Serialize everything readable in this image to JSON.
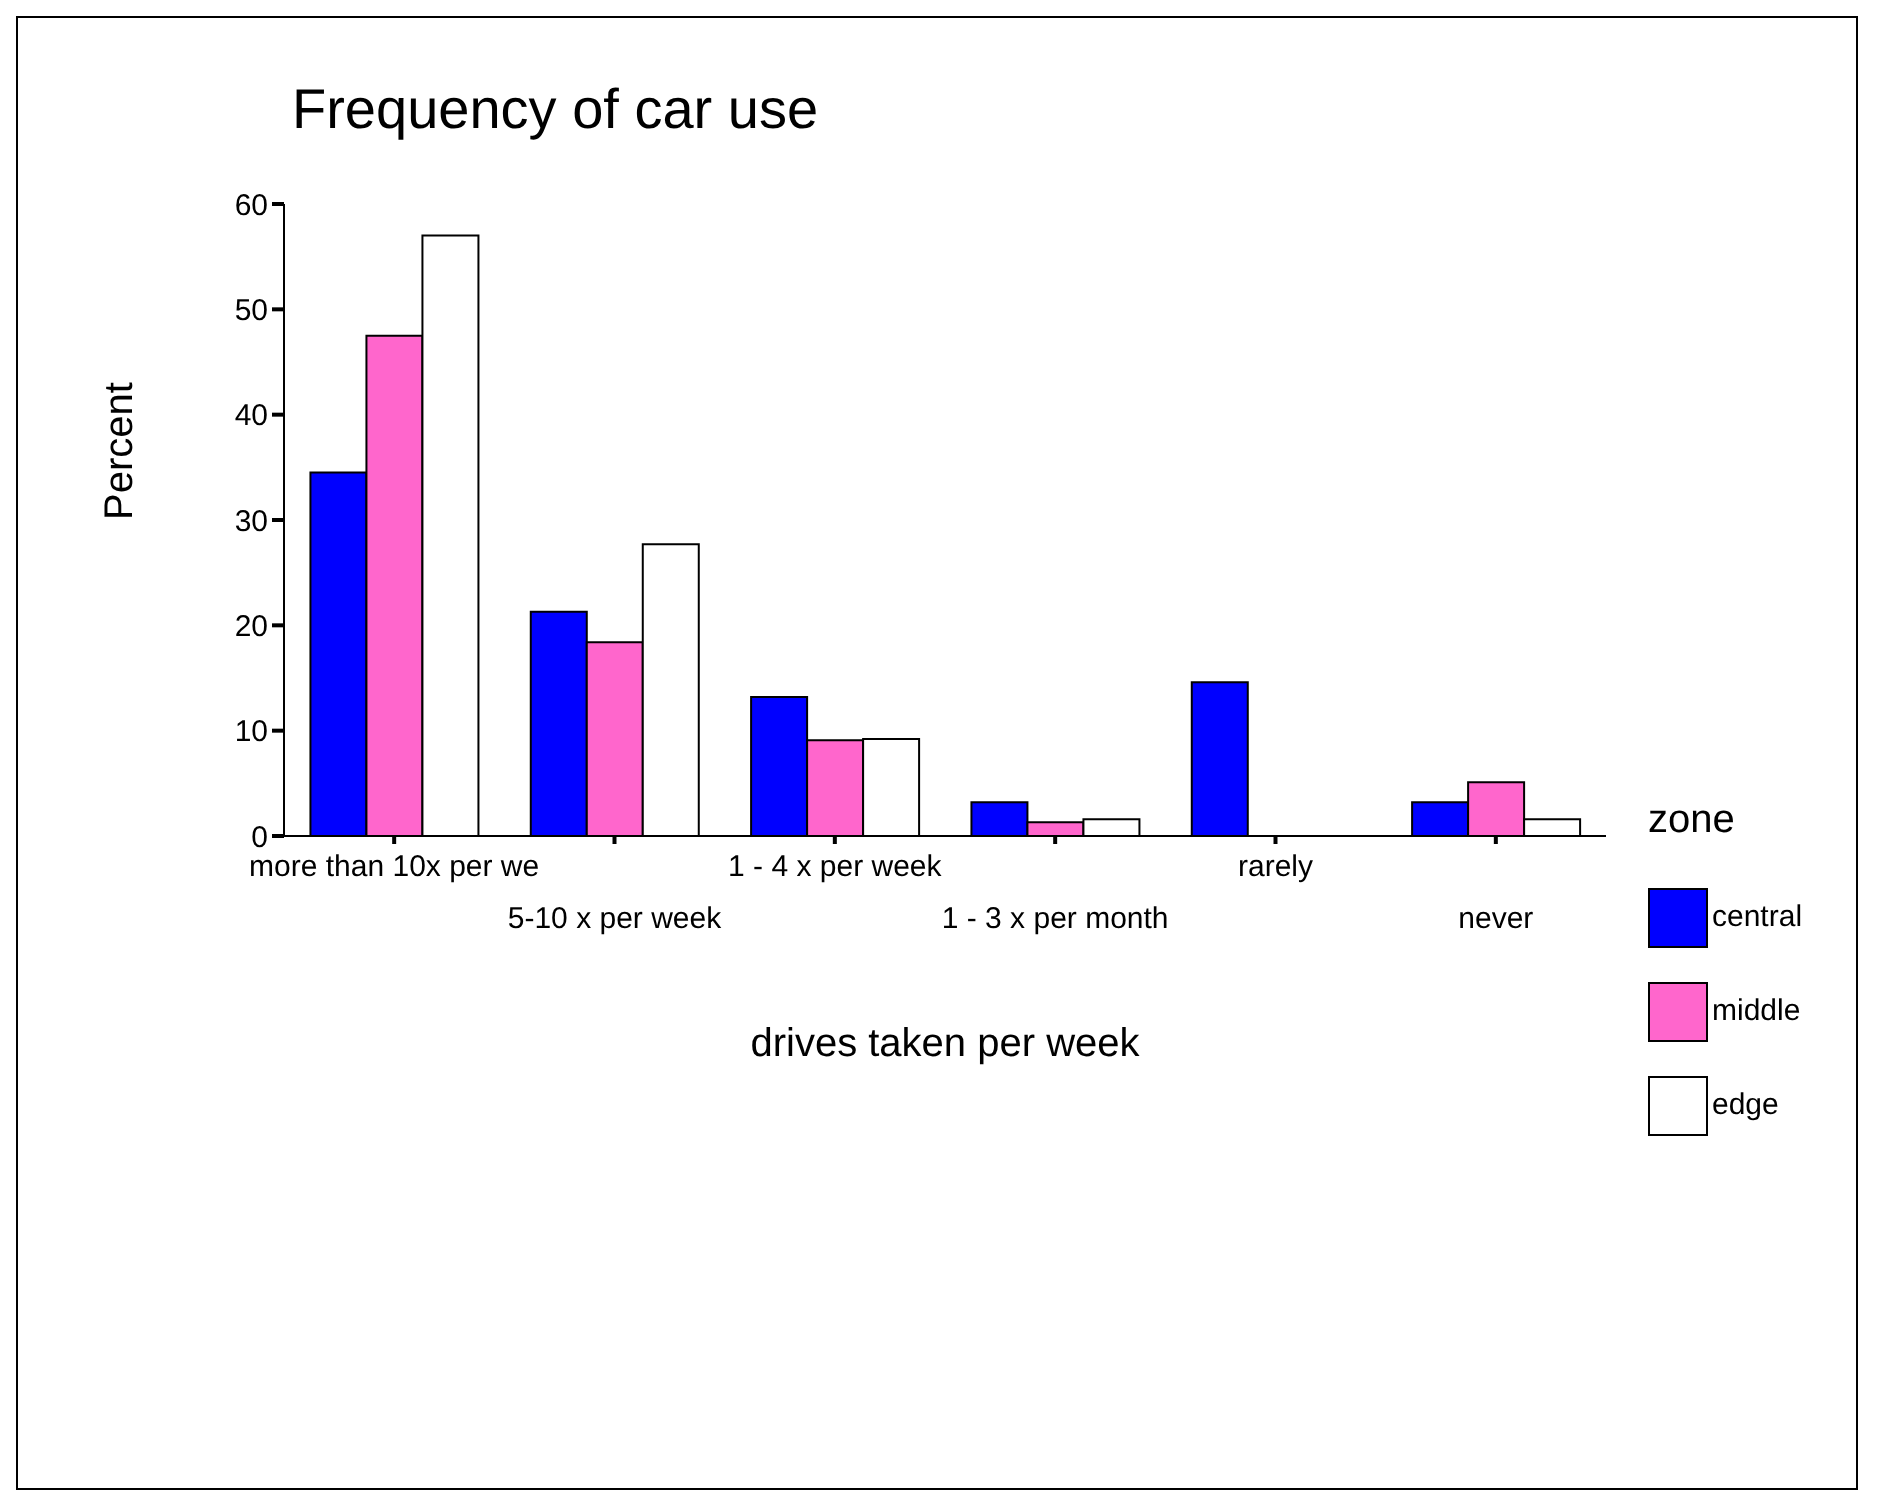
{
  "chart_data": {
    "type": "bar",
    "title": "Frequency of car use",
    "xlabel": "drives taken per week",
    "ylabel": "Percent",
    "legend_title": "zone",
    "legend": "right",
    "categories": [
      "more than 10x per we",
      "5-10 x per week",
      "1 - 4 x per week",
      "1 - 3 x per month",
      "rarely",
      "never"
    ],
    "series": [
      {
        "name": "central",
        "color": "#0000ff",
        "values": [
          34.5,
          21.3,
          13.2,
          3.2,
          14.6,
          3.2
        ]
      },
      {
        "name": "middle",
        "color": "#ff66cc",
        "values": [
          47.5,
          18.4,
          9.1,
          1.3,
          0,
          5.1
        ]
      },
      {
        "name": "edge",
        "color": "#ffffff",
        "values": [
          57,
          27.7,
          9.2,
          1.6,
          0,
          1.6
        ]
      }
    ],
    "ylim": [
      0,
      60
    ],
    "yticks": [
      0,
      10,
      20,
      30,
      40,
      50,
      60
    ],
    "grid": false
  }
}
